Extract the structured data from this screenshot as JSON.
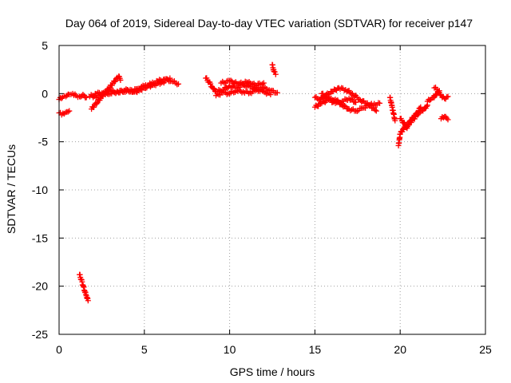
{
  "chart_data": {
    "type": "scatter",
    "title": "Day 064 of 2019, Sidereal Day-to-day VTEC variation (SDTVAR) for receiver p147",
    "xlabel": "GPS time / hours",
    "ylabel": "SDTVAR / TECUs",
    "xlim": [
      0,
      25
    ],
    "ylim": [
      -25,
      5
    ],
    "xticks": [
      0,
      5,
      10,
      15,
      20,
      25
    ],
    "yticks": [
      5,
      0,
      -5,
      -10,
      -15,
      -20,
      -25
    ],
    "grid": true,
    "marker": "+",
    "marker_color": "#ff0000",
    "segments": [
      {
        "x": [
          0.0,
          0.2,
          0.4,
          0.6,
          0.8,
          1.0,
          1.2,
          1.4,
          1.6
        ],
        "y": [
          -0.6,
          -0.4,
          -0.3,
          -0.1,
          0.0,
          -0.2,
          -0.3,
          -0.1,
          -0.4
        ]
      },
      {
        "x": [
          0.0,
          0.15,
          0.3,
          0.45,
          0.6
        ],
        "y": [
          -2.0,
          -2.2,
          -2.1,
          -1.9,
          -1.8
        ]
      },
      {
        "x": [
          1.2,
          1.3,
          1.4,
          1.5,
          1.6,
          1.7
        ],
        "y": [
          -18.8,
          -19.3,
          -19.9,
          -20.5,
          -21.0,
          -21.5
        ]
      },
      {
        "x": [
          1.8,
          2.2,
          2.6,
          3.0,
          3.4,
          3.8,
          4.2,
          4.6,
          5.0,
          5.4,
          5.8,
          6.2,
          6.6,
          7.0
        ],
        "y": [
          -0.3,
          0.0,
          0.1,
          0.0,
          0.2,
          0.3,
          0.2,
          0.5,
          0.8,
          1.0,
          1.3,
          1.5,
          1.3,
          1.0
        ]
      },
      {
        "x": [
          2.0,
          2.5,
          3.0,
          3.5,
          4.0,
          4.5,
          5.0,
          5.5,
          6.0,
          6.5
        ],
        "y": [
          -0.4,
          -0.2,
          0.3,
          0.1,
          0.4,
          0.2,
          0.6,
          0.9,
          1.1,
          1.6
        ]
      },
      {
        "x": [
          1.9,
          3.5,
          3.6
        ],
        "y": [
          -1.6,
          1.8,
          1.4
        ]
      },
      {
        "x": [
          8.6,
          8.8,
          9.0,
          9.2,
          9.6,
          10.0,
          10.4,
          10.8,
          11.2,
          11.6,
          12.0,
          12.4,
          12.8
        ],
        "y": [
          1.6,
          1.2,
          0.6,
          0.2,
          0.4,
          0.8,
          0.6,
          0.9,
          0.7,
          0.5,
          0.6,
          0.3,
          0.1
        ]
      },
      {
        "x": [
          9.2,
          9.6,
          10.0,
          10.4,
          10.8,
          11.2,
          11.6,
          12.0,
          12.4
        ],
        "y": [
          -0.2,
          0.1,
          0.0,
          0.3,
          0.2,
          0.1,
          0.4,
          0.2,
          -0.1
        ]
      },
      {
        "x": [
          9.5,
          10.0,
          10.5,
          11.0,
          11.5,
          12.0
        ],
        "y": [
          1.1,
          1.3,
          1.0,
          1.2,
          0.9,
          1.1
        ]
      },
      {
        "x": [
          12.5,
          12.6,
          12.7
        ],
        "y": [
          3.0,
          2.3,
          2.0
        ]
      },
      {
        "x": [
          15.0,
          15.3,
          15.6,
          16.0,
          16.4,
          16.8,
          17.2,
          17.6,
          18.0,
          18.4,
          18.8
        ],
        "y": [
          -0.4,
          -0.6,
          -0.2,
          0.2,
          0.6,
          0.4,
          0.0,
          -0.6,
          -1.0,
          -1.2,
          -1.0
        ]
      },
      {
        "x": [
          15.0,
          15.4,
          15.8,
          16.2,
          16.6,
          17.0,
          17.4,
          17.8,
          18.2,
          18.6
        ],
        "y": [
          -1.4,
          -1.0,
          -0.6,
          -0.6,
          -1.2,
          -1.6,
          -1.8,
          -1.5,
          -1.2,
          -1.8
        ]
      },
      {
        "x": [
          15.4,
          15.8,
          16.2,
          16.6,
          17.0,
          17.4
        ],
        "y": [
          0.0,
          -0.6,
          -1.0,
          -0.8,
          -0.5,
          -0.9
        ]
      },
      {
        "x": [
          19.4,
          19.5,
          19.6,
          19.7
        ],
        "y": [
          -0.4,
          -1.2,
          -2.0,
          -2.8
        ]
      },
      {
        "x": [
          19.9,
          20.0,
          20.2,
          20.4,
          20.6,
          20.8,
          21.0,
          21.2,
          21.4,
          21.6
        ],
        "y": [
          -5.4,
          -4.2,
          -3.6,
          -3.2,
          -3.0,
          -2.6,
          -2.2,
          -1.8,
          -1.6,
          -1.2
        ]
      },
      {
        "x": [
          20.0,
          20.2,
          20.4,
          20.6,
          20.8,
          21.0,
          21.2
        ],
        "y": [
          -2.6,
          -3.0,
          -3.6,
          -2.8,
          -2.4,
          -2.0,
          -1.4
        ]
      },
      {
        "x": [
          21.6,
          21.8,
          22.0,
          22.2,
          22.4,
          22.6,
          22.8
        ],
        "y": [
          -0.8,
          -0.6,
          -0.4,
          0.2,
          -0.2,
          -0.5,
          -0.3
        ]
      },
      {
        "x": [
          22.0,
          22.3
        ],
        "y": [
          0.6,
          0.3
        ]
      },
      {
        "x": [
          22.4,
          22.6,
          22.8
        ],
        "y": [
          -2.6,
          -2.4,
          -2.7
        ]
      }
    ]
  }
}
